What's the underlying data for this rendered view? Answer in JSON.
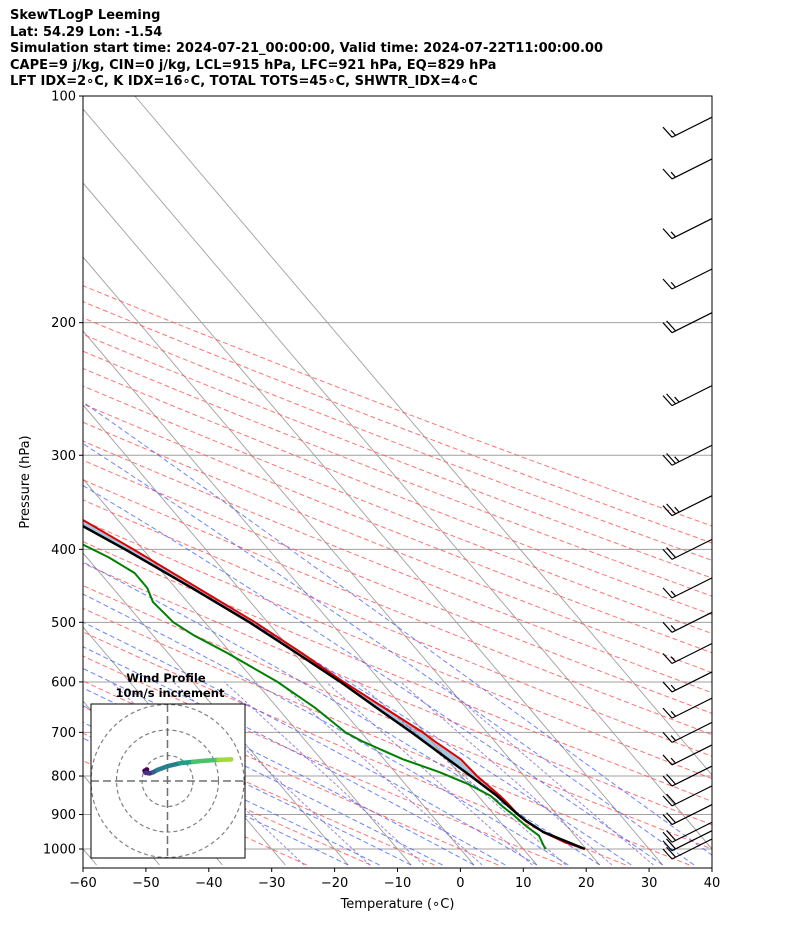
{
  "title_lines": [
    "SkewTLogP Leeming",
    "Lat: 54.29   Lon: -1.54",
    "Simulation start time: 2024-07-21_00:00:00, Valid time: 2024-07-22T11:00:00.00",
    "CAPE=9 j/kg, CIN=0 j/kg, LCL=915 hPa, LFC=921 hPa, EQ=829 hPa",
    "LFT IDX=2∘C, K IDX=16∘C, TOTAL TOTS=45∘C, SHWTR_IDX=4∘C"
  ],
  "colors": {
    "temperature": "#e00000",
    "dewpoint": "#008000",
    "parcel": "#000000",
    "cape_fill": "#a3c6df",
    "dry_adiabat": "#ff5050",
    "moist_adiabat": "#3050ff",
    "mixing_ratio": "#8060d0",
    "isotherm": "#a0a0a0",
    "isobar": "#a0a0a0",
    "hodograph_ring": "#808080"
  },
  "chart_data": [
    {
      "type": "skewt",
      "title": "SkewTLogP Leeming",
      "xlabel": "Temperature (∘C)",
      "ylabel": "Pressure (hPa)",
      "xlim": [
        -60,
        40
      ],
      "ylim": [
        1050,
        100
      ],
      "y_scale": "log",
      "grid": true,
      "x_ticks": [
        -60,
        -50,
        -40,
        -30,
        -20,
        -10,
        0,
        10,
        20,
        30,
        40
      ],
      "x_tick_labels": [
        "−60",
        "−50",
        "−40",
        "−30",
        "−20",
        "−10",
        "0",
        "10",
        "20",
        "30",
        "40"
      ],
      "y_ticks": [
        1000,
        900,
        800,
        700,
        600,
        500,
        400,
        300,
        200,
        100
      ],
      "y_tick_labels": [
        "1000",
        "900",
        "800",
        "700",
        "600",
        "500",
        "400",
        "300",
        "200",
        "100"
      ],
      "series": [
        {
          "id": "temperature",
          "points": [
            [
              1000,
              19.8
            ],
            [
              980,
              17.5
            ],
            [
              950,
              15.5
            ],
            [
              920,
              14.2
            ],
            [
              900,
              13.8
            ],
            [
              870,
              13.7
            ],
            [
              850,
              13.5
            ],
            [
              800,
              12.5
            ],
            [
              760,
              12.2
            ],
            [
              720,
              10.5
            ],
            [
              700,
              9.8
            ],
            [
              650,
              7.0
            ],
            [
              600,
              4.0
            ],
            [
              550,
              1.3
            ],
            [
              500,
              -2.0
            ],
            [
              450,
              -6.5
            ],
            [
              400,
              -11.5
            ],
            [
              350,
              -17.5
            ],
            [
              320,
              -22.0
            ],
            [
              300,
              -25.5
            ],
            [
              280,
              -29.0
            ],
            [
              260,
              -32.5
            ],
            [
              250,
              -33.5
            ],
            [
              230,
              -34.5
            ],
            [
              210,
              -35.5
            ],
            [
              200,
              -36.5
            ],
            [
              185,
              -38.5
            ],
            [
              170,
              -41.5
            ],
            [
              160,
              -44.2
            ],
            [
              150,
              -48.0
            ],
            [
              140,
              -51.0
            ],
            [
              130,
              -54.5
            ],
            [
              120,
              -57.5
            ],
            [
              110,
              -59.0
            ],
            [
              100,
              -61.0
            ]
          ]
        },
        {
          "id": "dewpoint",
          "points": [
            [
              1000,
              13.5
            ],
            [
              960,
              14.3
            ],
            [
              930,
              13.5
            ],
            [
              900,
              13.0
            ],
            [
              880,
              12.5
            ],
            [
              850,
              12.0
            ],
            [
              820,
              10.0
            ],
            [
              790,
              7.0
            ],
            [
              760,
              3.0
            ],
            [
              720,
              -1.0
            ],
            [
              700,
              -2.5
            ],
            [
              650,
              -4.0
            ],
            [
              600,
              -6.5
            ],
            [
              550,
              -10.5
            ],
            [
              520,
              -13.5
            ],
            [
              500,
              -15.0
            ],
            [
              470,
              -15.5
            ],
            [
              450,
              -14.5
            ],
            [
              430,
              -14.5
            ],
            [
              410,
              -16.5
            ],
            [
              390,
              -19.5
            ],
            [
              370,
              -22.0
            ],
            [
              350,
              -26.0
            ],
            [
              330,
              -29.5
            ],
            [
              310,
              -32.0
            ],
            [
              290,
              -34.5
            ],
            [
              270,
              -36.5
            ],
            [
              250,
              -38.5
            ],
            [
              230,
              -40.0
            ],
            [
              215,
              -41.5
            ],
            [
              200,
              -44.0
            ],
            [
              180,
              -48.0
            ],
            [
              170,
              -49.0
            ],
            [
              160,
              -49.5
            ],
            [
              140,
              -51.0
            ],
            [
              120,
              -53.0
            ],
            [
              100,
              -55.0
            ]
          ]
        },
        {
          "id": "parcel",
          "points": [
            [
              1000,
              19.8
            ],
            [
              950,
              15.5
            ],
            [
              920,
              14.3
            ],
            [
              900,
              13.8
            ],
            [
              850,
              13.0
            ],
            [
              800,
              11.5
            ],
            [
              750,
              9.8
            ],
            [
              700,
              8.0
            ],
            [
              650,
              5.8
            ],
            [
              600,
              3.5
            ],
            [
              550,
              0.5
            ],
            [
              500,
              -2.9
            ],
            [
              450,
              -7.4
            ],
            [
              400,
              -12.8
            ],
            [
              350,
              -19.5
            ],
            [
              300,
              -27.5
            ],
            [
              250,
              -37.5
            ],
            [
              200,
              -48.5
            ],
            [
              175,
              -53.5
            ],
            [
              150,
              -59.0
            ],
            [
              125,
              -65.0
            ],
            [
              100,
              -70.2
            ]
          ]
        }
      ],
      "wind_barbs": [
        {
          "p": 1000,
          "speed_kt": 20,
          "dir_deg": 250
        },
        {
          "p": 975,
          "speed_kt": 20,
          "dir_deg": 250
        },
        {
          "p": 950,
          "speed_kt": 20,
          "dir_deg": 250
        },
        {
          "p": 900,
          "speed_kt": 20,
          "dir_deg": 250
        },
        {
          "p": 850,
          "speed_kt": 20,
          "dir_deg": 250
        },
        {
          "p": 800,
          "speed_kt": 20,
          "dir_deg": 250
        },
        {
          "p": 750,
          "speed_kt": 15,
          "dir_deg": 255
        },
        {
          "p": 700,
          "speed_kt": 15,
          "dir_deg": 255
        },
        {
          "p": 650,
          "speed_kt": 15,
          "dir_deg": 255
        },
        {
          "p": 600,
          "speed_kt": 15,
          "dir_deg": 255
        },
        {
          "p": 550,
          "speed_kt": 15,
          "dir_deg": 255
        },
        {
          "p": 500,
          "speed_kt": 15,
          "dir_deg": 255
        },
        {
          "p": 450,
          "speed_kt": 15,
          "dir_deg": 255
        },
        {
          "p": 400,
          "speed_kt": 20,
          "dir_deg": 255
        },
        {
          "p": 350,
          "speed_kt": 25,
          "dir_deg": 255
        },
        {
          "p": 300,
          "speed_kt": 25,
          "dir_deg": 255
        },
        {
          "p": 250,
          "speed_kt": 25,
          "dir_deg": 255
        },
        {
          "p": 200,
          "speed_kt": 20,
          "dir_deg": 255
        },
        {
          "p": 175,
          "speed_kt": 15,
          "dir_deg": 255
        },
        {
          "p": 150,
          "speed_kt": 15,
          "dir_deg": 255
        },
        {
          "p": 125,
          "speed_kt": 15,
          "dir_deg": 255
        },
        {
          "p": 110,
          "speed_kt": 15,
          "dir_deg": 255
        }
      ]
    },
    {
      "type": "hodograph",
      "title": "Wind Profile",
      "subtitle": "10m/s increment",
      "ring_increment_ms": 10,
      "rings": 3,
      "range_ms": 25,
      "trace_uv": [
        [
          -8.0,
          4.5
        ],
        [
          -9.0,
          4.0
        ],
        [
          -8.5,
          3.2
        ],
        [
          -7.0,
          3.0
        ],
        [
          -5.5,
          3.5
        ],
        [
          -4.0,
          4.3
        ],
        [
          0.0,
          5.8
        ],
        [
          5.0,
          7.0
        ],
        [
          10.0,
          7.5
        ],
        [
          15.0,
          8.0
        ],
        [
          20.0,
          8.3
        ],
        [
          25.0,
          8.5
        ]
      ]
    }
  ]
}
